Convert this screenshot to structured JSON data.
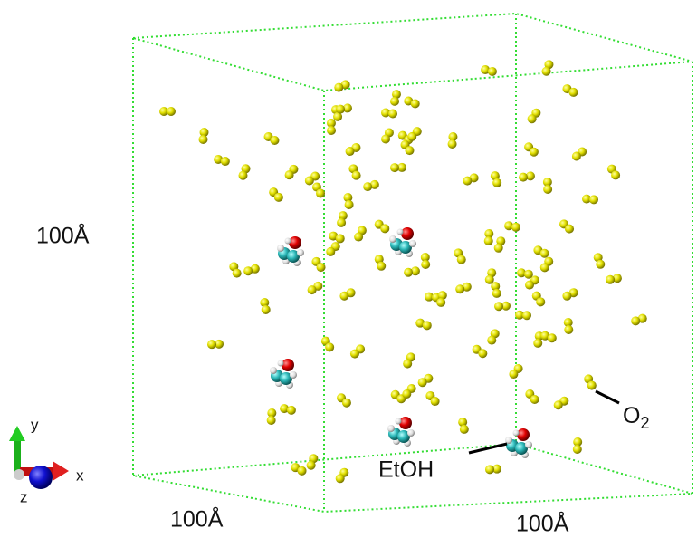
{
  "box_labels": {
    "height": "100Å",
    "depth": "100Å",
    "width": "100Å"
  },
  "annotations": {
    "oxygen": {
      "text": "O",
      "subscript": "2"
    },
    "ethanol": "EtOH"
  },
  "axes": {
    "x": "x",
    "y": "y",
    "z": "z"
  }
}
